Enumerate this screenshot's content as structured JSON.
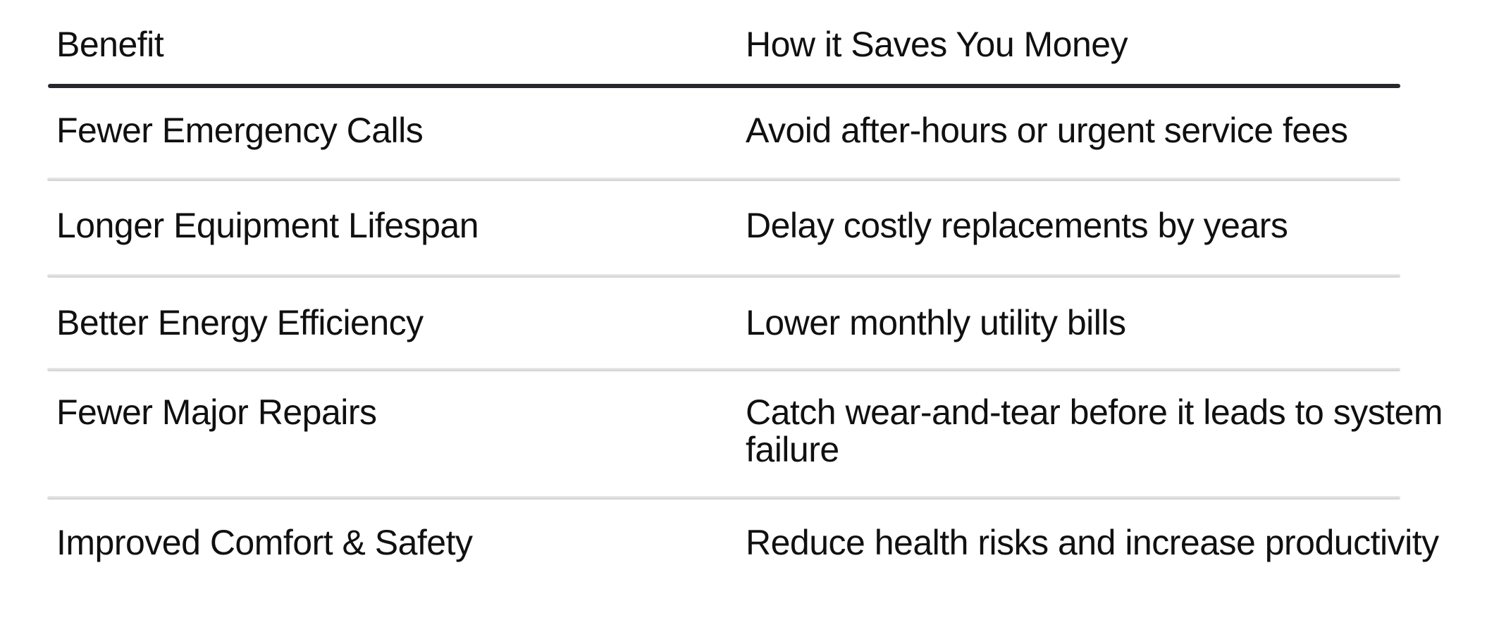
{
  "table": {
    "headers": {
      "benefit": "Benefit",
      "saving": "How it Saves You Money"
    },
    "rows": [
      {
        "benefit": "Fewer Emergency Calls",
        "saving": "Avoid after-hours or urgent service fees"
      },
      {
        "benefit": "Longer Equipment Lifespan",
        "saving": "Delay costly replacements by years"
      },
      {
        "benefit": "Better Energy Efficiency",
        "saving": "Lower monthly utility bills"
      },
      {
        "benefit": "Fewer Major Repairs",
        "saving": "Catch wear-and-tear before it leads to system failure"
      },
      {
        "benefit": "Improved Comfort & Safety",
        "saving": "Reduce health risks and increase productivity"
      }
    ],
    "colors": {
      "background": "#ffffff",
      "text": "#101010",
      "header_rule": "#27272e",
      "row_divider": "#d7d7d7"
    }
  }
}
